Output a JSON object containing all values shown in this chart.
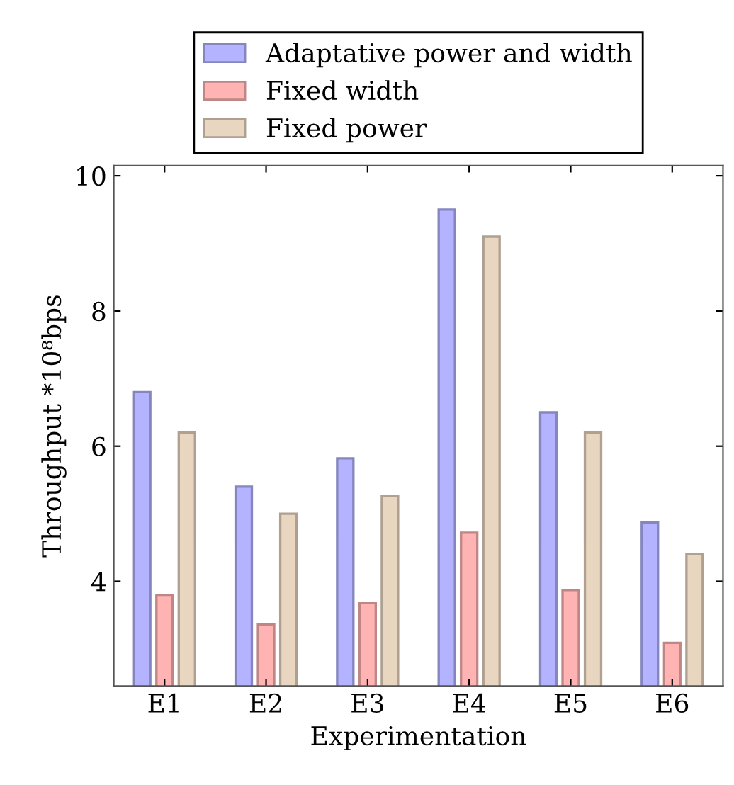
{
  "chart_data": {
    "type": "bar",
    "xlabel": "Experimentation",
    "ylabel": "Throughput *10⁸bps",
    "categories": [
      "E1",
      "E2",
      "E3",
      "E4",
      "E5",
      "E6"
    ],
    "series": [
      {
        "name": "Adaptative power and width",
        "color": "#b3b3ff",
        "values": [
          6.8,
          5.4,
          5.82,
          9.5,
          6.5,
          4.87
        ]
      },
      {
        "name": "Fixed width",
        "color": "#ffb3b3",
        "values": [
          3.8,
          3.36,
          3.68,
          4.72,
          3.87,
          3.09
        ]
      },
      {
        "name": "Fixed power",
        "color": "#e9d6c0",
        "values": [
          6.2,
          5.0,
          5.26,
          9.1,
          6.2,
          4.4
        ]
      }
    ],
    "ylim": [
      2.45,
      10.15
    ],
    "yticks": [
      4,
      6,
      8,
      10
    ],
    "grid": false,
    "legend": "top"
  }
}
